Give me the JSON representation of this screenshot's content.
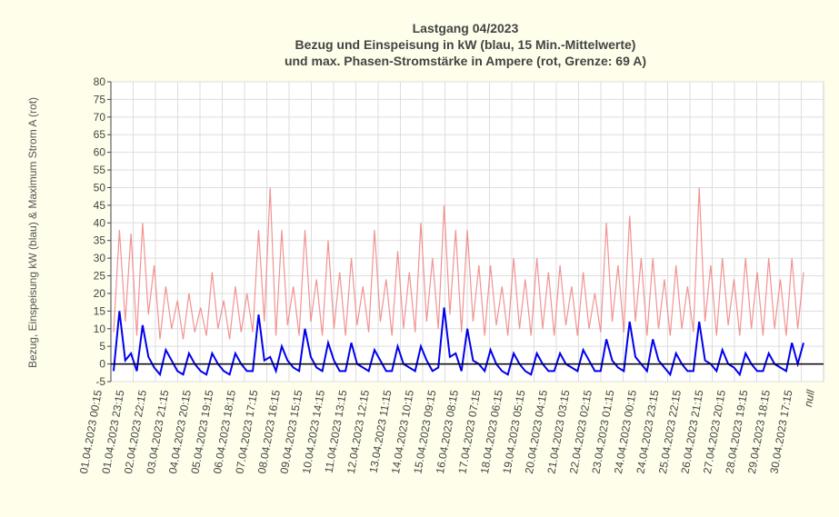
{
  "chart_data": {
    "type": "line",
    "title": [
      "Lastgang 04/2023",
      "Bezug und Einspeisung in kW (blau, 15 Min.-Mittelwerte)",
      "und max. Phasen-Stromstärke in Ampere (rot, Grenze: 69 A)"
    ],
    "ylabel": "Bezug, Einspeisung kW (blau) & Maximum Strom A (rot)",
    "ylim": [
      -5,
      80
    ],
    "yticks": [
      -5,
      0,
      5,
      10,
      15,
      20,
      25,
      30,
      35,
      40,
      45,
      50,
      55,
      60,
      65,
      70,
      75,
      80
    ],
    "xtick_labels": [
      "01.04.2023 00:15",
      "01.04.2023 23:15",
      "02.04.2023 22:15",
      "03.04.2023 21:15",
      "04.04.2023 20:15",
      "05.04.2023 19:15",
      "06.04.2023 18:15",
      "07.04.2023 17:15",
      "08.04.2023 16:15",
      "09.04.2023 15:15",
      "10.04.2023 14:15",
      "11.04.2023 13:15",
      "12.04.2023 12:15",
      "13.04.2023 11:15",
      "14.04.2023 10:15",
      "15.04.2023 09:15",
      "16.04.2023 08:15",
      "17.04.2023 07:15",
      "18.04.2023 06:15",
      "19.04.2023 05:15",
      "20.04.2023 04:15",
      "21.04.2023 03:15",
      "22.04.2023 02:15",
      "23.04.2023 01:15",
      "24.04.2023 00:15",
      "24.04.2023 23:15",
      "25.04.2023 22:15",
      "26.04.2023 21:15",
      "27.04.2023 20:15",
      "28.04.2023 19:15",
      "29.04.2023 18:15",
      "30.04.2023 17:15",
      "null"
    ],
    "series": [
      {
        "name": "max. Phasen-Stromstärke (A)",
        "color": "#f08080",
        "values": [
          9,
          38,
          12,
          37,
          8,
          40,
          14,
          28,
          7,
          22,
          10,
          18,
          7,
          20,
          9,
          16,
          8,
          26,
          10,
          18,
          7,
          22,
          9,
          20,
          9,
          38,
          12,
          50,
          8,
          38,
          11,
          22,
          8,
          38,
          12,
          24,
          8,
          35,
          10,
          26,
          8,
          30,
          11,
          22,
          9,
          38,
          12,
          24,
          8,
          32,
          10,
          26,
          9,
          40,
          12,
          30,
          10,
          45,
          14,
          38,
          9,
          38,
          12,
          28,
          8,
          28,
          11,
          22,
          8,
          30,
          10,
          24,
          8,
          30,
          10,
          26,
          8,
          28,
          11,
          22,
          8,
          26,
          10,
          20,
          9,
          40,
          12,
          28,
          9,
          42,
          12,
          30,
          8,
          30,
          10,
          24,
          8,
          28,
          10,
          22,
          9,
          50,
          12,
          28,
          8,
          30,
          11,
          24,
          8,
          30,
          10,
          26,
          8,
          30,
          10,
          24,
          8,
          30,
          10,
          26
        ]
      },
      {
        "name": "Bezug/Einspeisung (kW)",
        "color": "#0000ee",
        "values": [
          -2,
          15,
          1,
          3,
          -2,
          11,
          2,
          -1,
          -3,
          4,
          1,
          -2,
          -3,
          3,
          0,
          -2,
          -3,
          3,
          0,
          -2,
          -3,
          3,
          0,
          -2,
          -2,
          14,
          1,
          2,
          -2,
          5,
          1,
          -1,
          -2,
          10,
          2,
          -1,
          -2,
          6,
          1,
          -2,
          -2,
          6,
          0,
          -1,
          -2,
          4,
          1,
          -2,
          -2,
          5,
          0,
          -1,
          -2,
          5,
          1,
          -2,
          -1,
          16,
          2,
          3,
          -2,
          10,
          1,
          0,
          -2,
          4,
          0,
          -2,
          -3,
          3,
          0,
          -2,
          -3,
          3,
          0,
          -2,
          -2,
          3,
          0,
          -1,
          -2,
          4,
          1,
          -2,
          -2,
          7,
          1,
          -1,
          -2,
          12,
          2,
          0,
          -2,
          7,
          1,
          -1,
          -3,
          3,
          0,
          -2,
          -2,
          12,
          1,
          0,
          -2,
          4,
          0,
          -1,
          -3,
          3,
          0,
          -2,
          -2,
          3,
          0,
          -1,
          -2,
          6,
          0,
          6
        ]
      }
    ],
    "reference_line": {
      "y": 0,
      "color": "#000000"
    }
  }
}
